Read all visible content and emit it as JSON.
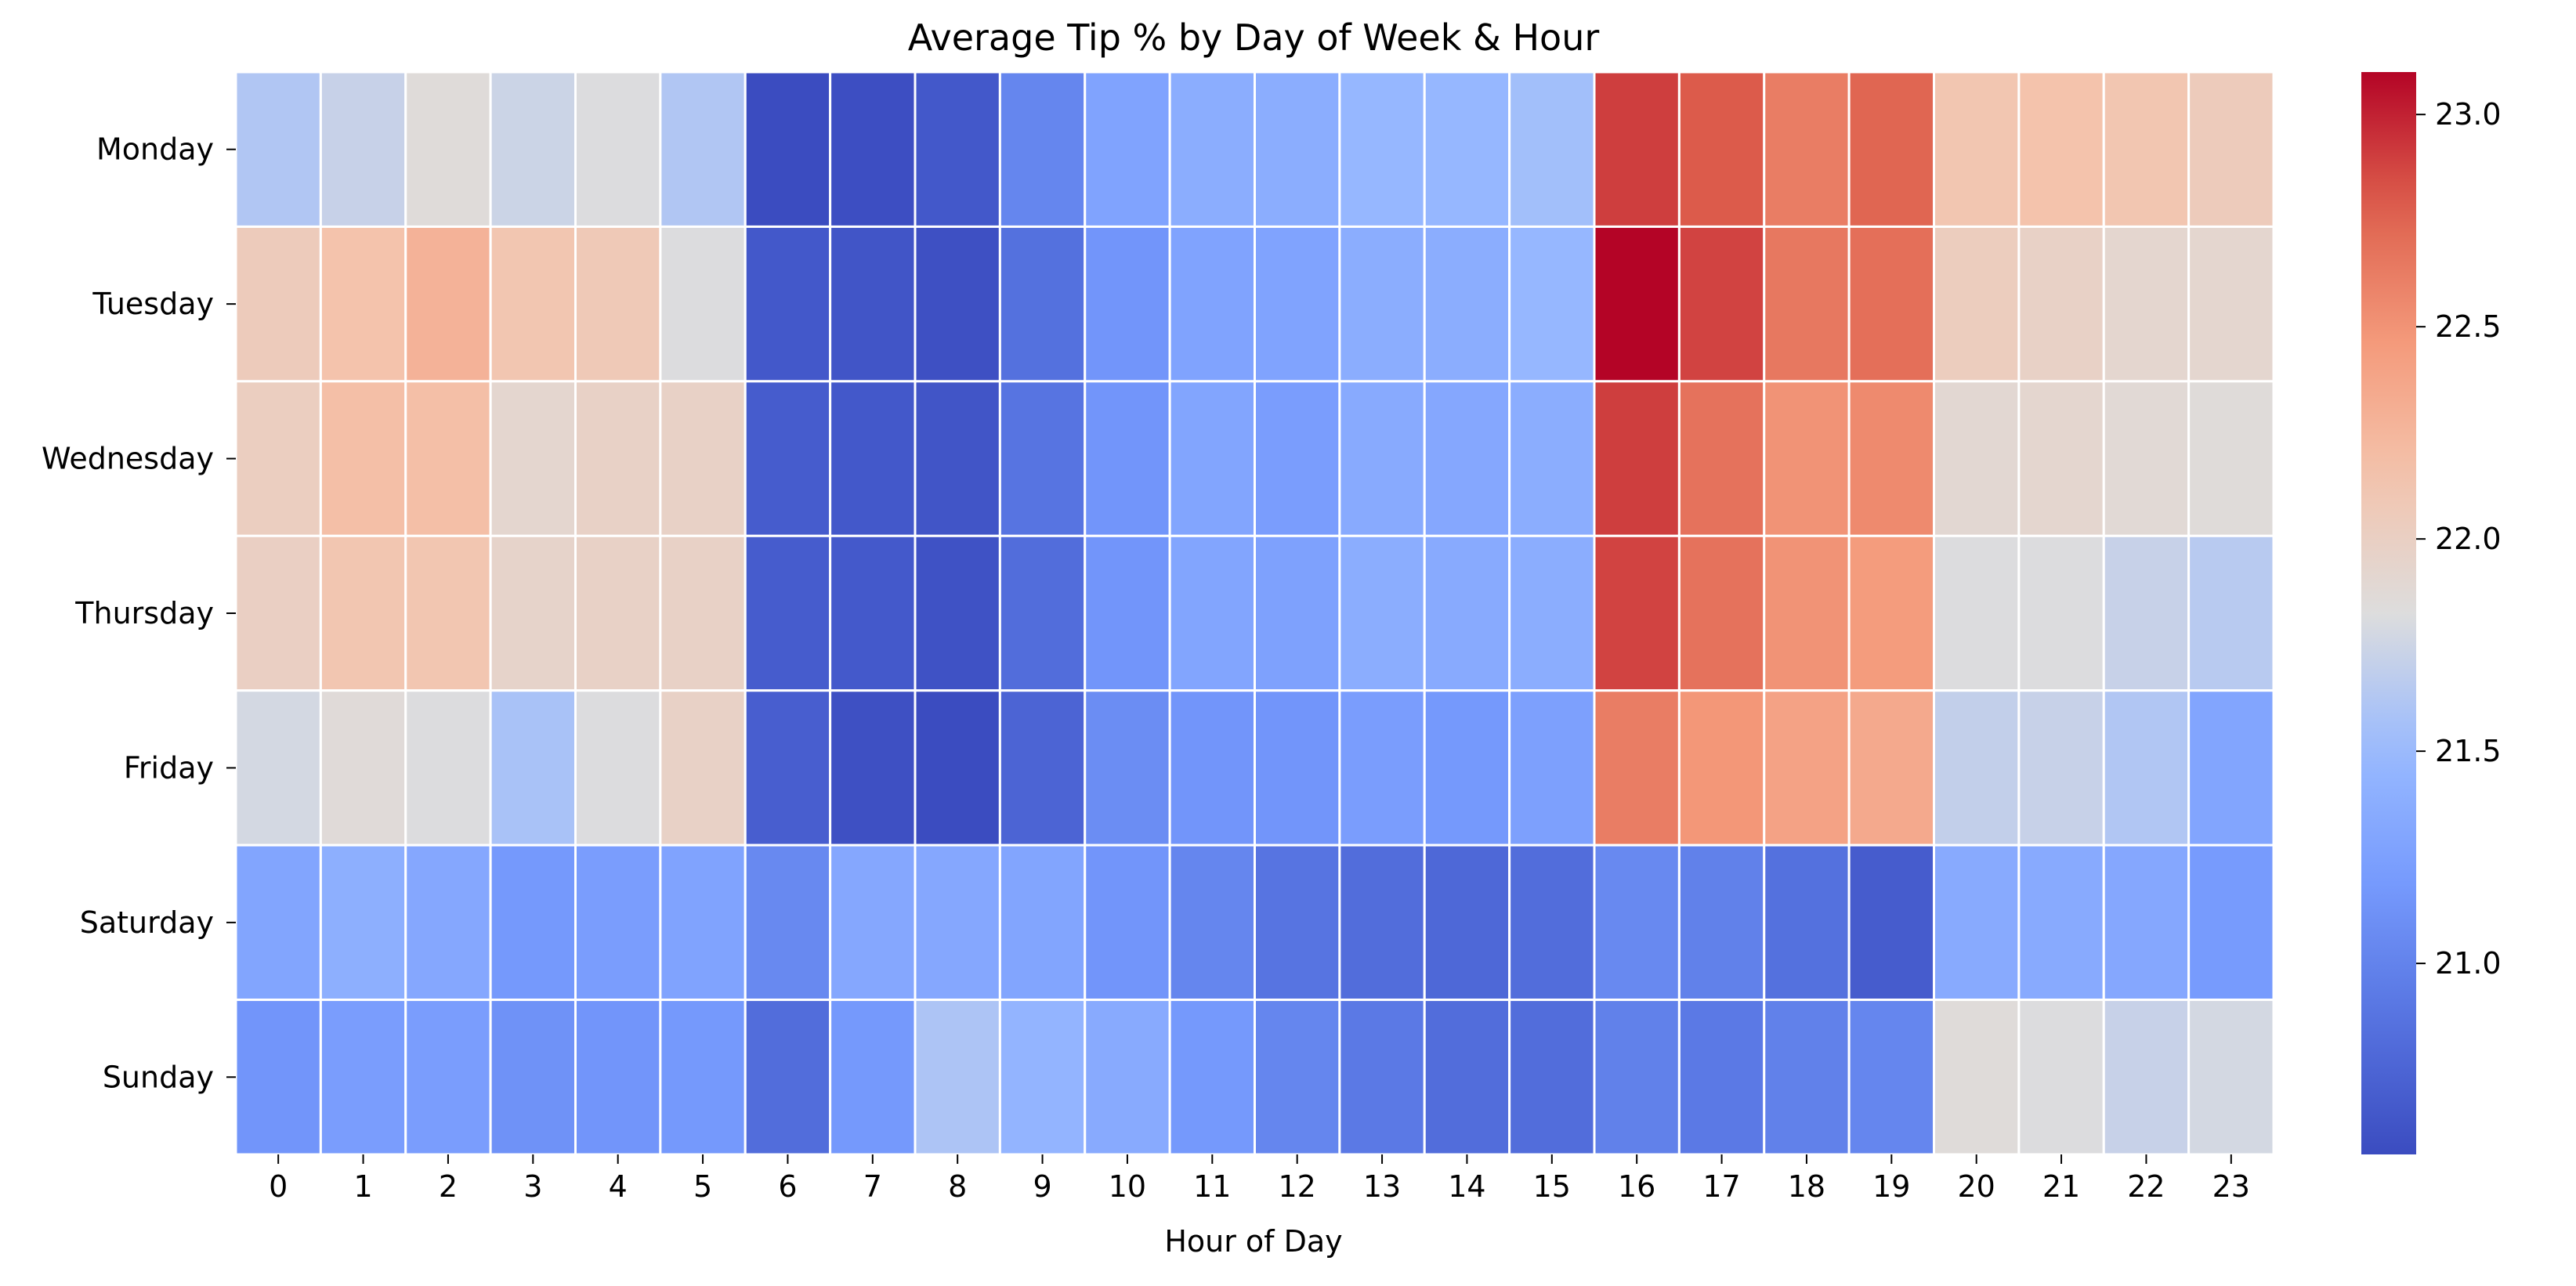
{
  "chart_data": {
    "type": "heatmap",
    "title": "Average Tip % by Day of Week & Hour",
    "xlabel": "Hour of Day",
    "ylabel": "",
    "x": [
      "0",
      "1",
      "2",
      "3",
      "4",
      "5",
      "6",
      "7",
      "8",
      "9",
      "10",
      "11",
      "12",
      "13",
      "14",
      "15",
      "16",
      "17",
      "18",
      "19",
      "20",
      "21",
      "22",
      "23"
    ],
    "y": [
      "Monday",
      "Tuesday",
      "Wednesday",
      "Thursday",
      "Friday",
      "Saturday",
      "Sunday"
    ],
    "values": [
      [
        21.62,
        21.72,
        21.85,
        21.74,
        21.82,
        21.62,
        20.55,
        20.57,
        20.65,
        21.02,
        21.28,
        21.38,
        21.38,
        21.48,
        21.48,
        21.55,
        22.9,
        22.8,
        22.62,
        22.75,
        22.12,
        22.15,
        22.12,
        22.05
      ],
      [
        22.05,
        22.15,
        22.28,
        22.12,
        22.08,
        21.82,
        20.65,
        20.62,
        20.58,
        20.85,
        21.15,
        21.28,
        21.28,
        21.38,
        21.38,
        21.48,
        23.1,
        22.88,
        22.65,
        22.7,
        22.03,
        21.98,
        21.92,
        21.92
      ],
      [
        22.02,
        22.18,
        22.18,
        21.92,
        21.98,
        21.98,
        20.68,
        20.65,
        20.62,
        20.88,
        21.15,
        21.3,
        21.22,
        21.35,
        21.32,
        21.38,
        22.9,
        22.68,
        22.5,
        22.55,
        21.9,
        21.92,
        21.88,
        21.85
      ],
      [
        22.0,
        22.12,
        22.12,
        21.95,
        21.98,
        21.98,
        20.68,
        20.66,
        20.6,
        20.82,
        21.15,
        21.3,
        21.26,
        21.38,
        21.35,
        21.38,
        22.88,
        22.68,
        22.5,
        22.45,
        21.82,
        21.82,
        21.72,
        21.65
      ],
      [
        21.78,
        21.86,
        21.82,
        21.58,
        21.82,
        21.98,
        20.7,
        20.58,
        20.55,
        20.75,
        21.08,
        21.15,
        21.15,
        21.22,
        21.18,
        21.25,
        22.62,
        22.48,
        22.4,
        22.35,
        21.7,
        21.72,
        21.62,
        21.3
      ],
      [
        21.3,
        21.4,
        21.32,
        21.18,
        21.22,
        21.28,
        21.05,
        21.32,
        21.32,
        21.3,
        21.15,
        21.02,
        20.88,
        20.82,
        20.78,
        20.82,
        21.05,
        20.98,
        20.85,
        20.68,
        21.35,
        21.35,
        21.32,
        21.2
      ],
      [
        21.15,
        21.22,
        21.22,
        21.12,
        21.15,
        21.18,
        20.82,
        21.18,
        21.6,
        21.45,
        21.35,
        21.18,
        21.02,
        20.92,
        20.82,
        20.82,
        20.98,
        20.92,
        20.98,
        21.02,
        21.85,
        21.82,
        21.72,
        21.78
      ]
    ],
    "vmin": 20.55,
    "vmax": 23.1,
    "colormap": "coolwarm",
    "colorbar": {
      "ticks": [
        21.0,
        21.5,
        22.0,
        22.5,
        23.0
      ],
      "tick_labels": [
        "21.0",
        "21.5",
        "22.0",
        "22.5",
        "23.0"
      ]
    },
    "grid": false,
    "cell_borders": "#ffffff"
  }
}
